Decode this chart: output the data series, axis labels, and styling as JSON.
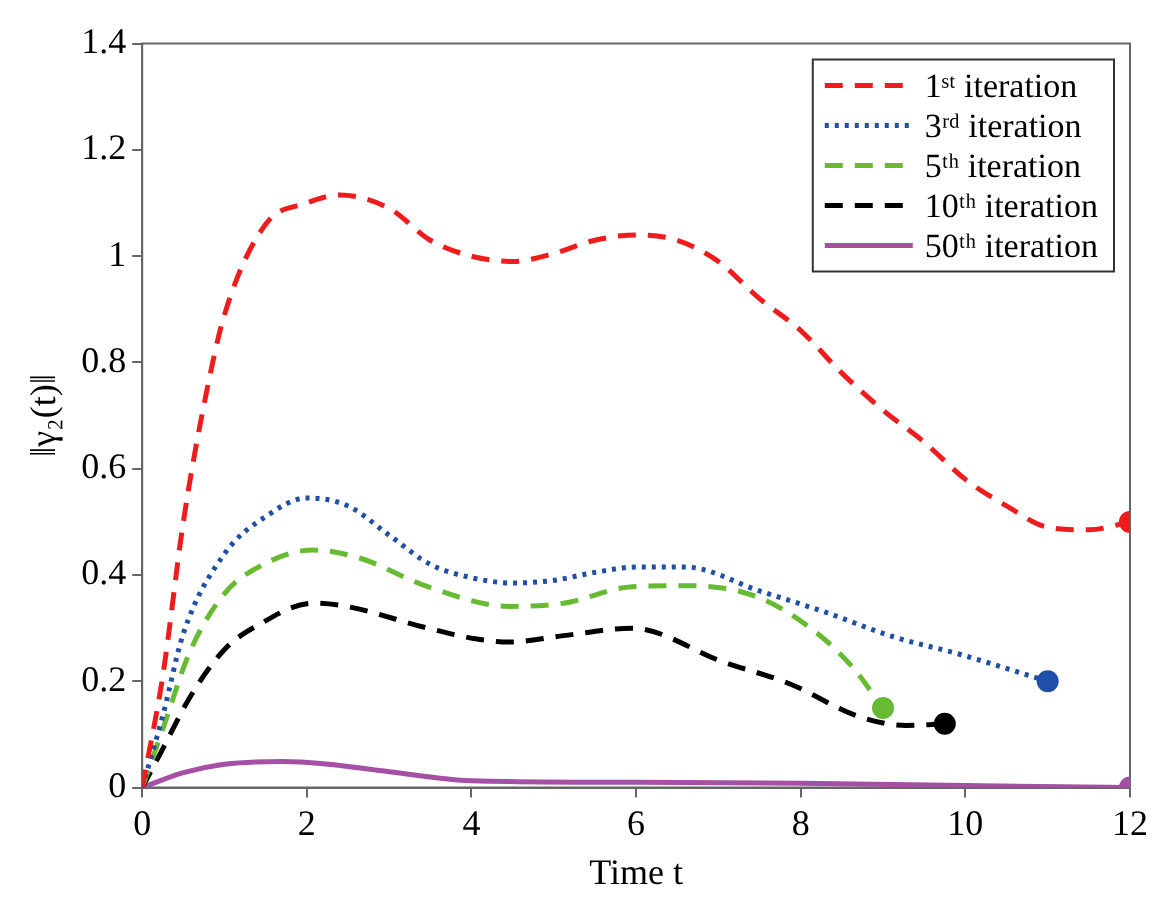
{
  "chart_data": {
    "type": "line",
    "xlabel": "Time t",
    "ylabel": "‖γ₂(t)‖",
    "xlim": [
      0,
      12
    ],
    "ylim": [
      0,
      1.4
    ],
    "xticks": [
      0,
      2,
      4,
      6,
      8,
      10,
      12
    ],
    "yticks": [
      0,
      0.2,
      0.4,
      0.6,
      0.8,
      1,
      1.2,
      1.4
    ],
    "grid": false,
    "legend": "top right",
    "marker": "none",
    "series": [
      {
        "name": "1ˢᵗ iteration",
        "color": "#ee1c1c",
        "line_style": "dashed",
        "x": [
          0,
          0.25,
          0.5,
          0.75,
          1,
          1.5,
          2,
          2.4,
          3,
          3.5,
          4,
          4.5,
          5,
          5.5,
          6,
          6.5,
          7,
          7.5,
          8,
          8.5,
          9,
          9.5,
          10,
          10.5,
          11,
          11.5,
          12
        ],
        "values": [
          0,
          0.21,
          0.5,
          0.72,
          0.89,
          1.06,
          1.1,
          1.115,
          1.09,
          1.03,
          1,
          0.99,
          1.005,
          1.03,
          1.04,
          1.03,
          0.99,
          0.92,
          0.86,
          0.78,
          0.71,
          0.65,
          0.58,
          0.53,
          0.49,
          0.485,
          0.5
        ]
      },
      {
        "name": "3ʳᵈ iteration",
        "color": "#1f4fa8",
        "line_style": "dotted",
        "x": [
          0,
          0.25,
          0.5,
          1,
          1.5,
          2,
          2.5,
          3,
          3.5,
          4,
          4.5,
          5,
          5.5,
          6,
          6.6,
          7.5,
          8.3,
          9.1,
          9.95,
          11
        ],
        "values": [
          0,
          0.135,
          0.29,
          0.44,
          0.51,
          0.545,
          0.53,
          0.475,
          0.42,
          0.395,
          0.385,
          0.39,
          0.405,
          0.415,
          0.415,
          0.37,
          0.33,
          0.285,
          0.25,
          0.2
        ]
      },
      {
        "name": "5ᵗʰ iteration",
        "color": "#66bb33",
        "line_style": "dashed",
        "x": [
          0,
          0.25,
          0.58,
          1,
          1.4,
          2.07,
          2.64,
          3.47,
          4.46,
          5.12,
          5.95,
          6.63,
          7.45,
          8.12,
          8.61,
          9
        ],
        "values": [
          0,
          0.11,
          0.256,
          0.365,
          0.414,
          0.447,
          0.432,
          0.378,
          0.341,
          0.347,
          0.378,
          0.38,
          0.36,
          0.3,
          0.23,
          0.15
        ]
      },
      {
        "name": "10ᵗʰ iteration",
        "color": "#000000",
        "line_style": "dashed",
        "x": [
          0,
          0.25,
          0.58,
          1,
          1.4,
          2.07,
          2.48,
          3.47,
          4.05,
          4.46,
          5.12,
          5.95,
          7.05,
          7.87,
          8.7,
          9.28,
          9.75
        ],
        "values": [
          0,
          0.073,
          0.17,
          0.26,
          0.305,
          0.347,
          0.341,
          0.3,
          0.28,
          0.274,
          0.286,
          0.3,
          0.237,
          0.195,
          0.134,
          0.117,
          0.12
        ]
      },
      {
        "name": "50ᵗʰ iteration",
        "color": "#a54fa5",
        "line_style": "solid",
        "x": [
          0,
          0.5,
          1,
          1.7,
          2.2,
          3,
          4,
          6,
          8,
          10,
          12
        ],
        "values": [
          0,
          0.028,
          0.044,
          0.049,
          0.045,
          0.03,
          0.013,
          0.01,
          0.008,
          0.004,
          0
        ]
      },
      {
        "type": "scatter",
        "marker": "circle",
        "color": "#ee1c1c",
        "x": [
          12
        ],
        "values": [
          0.5
        ]
      },
      {
        "type": "scatter",
        "marker": "circle",
        "color": "#1f4fa8",
        "x": [
          11
        ],
        "values": [
          0.2
        ]
      },
      {
        "type": "scatter",
        "marker": "circle",
        "color": "#66bb33",
        "x": [
          9
        ],
        "values": [
          0.15
        ]
      },
      {
        "type": "scatter",
        "marker": "circle",
        "color": "#000000",
        "x": [
          9.75
        ],
        "values": [
          0.12
        ]
      },
      {
        "type": "scatter",
        "marker": "circle",
        "color": "#a54fa5",
        "x": [
          12
        ],
        "values": [
          0
        ]
      }
    ]
  }
}
